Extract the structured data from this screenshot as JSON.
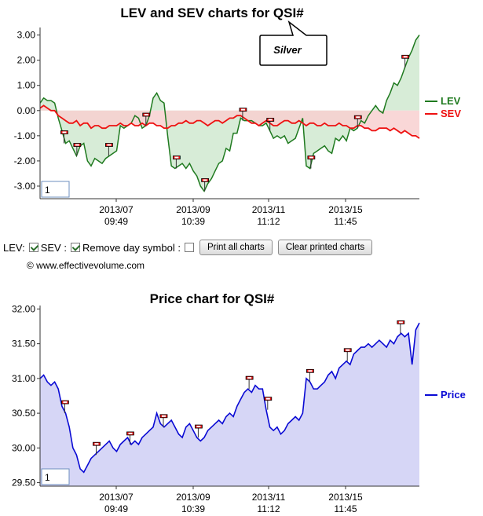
{
  "chart1": {
    "title": "LEV and SEV charts for QSI#",
    "callout": "Silver",
    "zoom_box": "1",
    "legend": {
      "lev": "LEV",
      "sev": "SEV"
    },
    "colors": {
      "lev": "#1f7a1f",
      "sev": "#ee1111",
      "lev_fill": "#d7ecd7",
      "sev_fill": "#f8d0d0",
      "overlap_fill": "#d6c4b0"
    }
  },
  "chart2": {
    "title": "Price chart for QSI#",
    "zoom_box": "1",
    "legend": {
      "price": "Price"
    },
    "colors": {
      "price": "#0a0ad4",
      "fill": "#d6d6f6"
    }
  },
  "controls": {
    "lev_label": "LEV:",
    "sev_label": "SEV :",
    "remove_label": "Remove day symbol :",
    "lev_checked": true,
    "sev_checked": true,
    "remove_checked": false,
    "print_all": "Print all charts",
    "clear_printed": "Clear printed charts"
  },
  "copyright": "© www.effectivevolume.com",
  "chart_data": [
    {
      "type": "area",
      "title": "LEV and SEV charts for QSI#",
      "ylim": [
        -3.5,
        3.3
      ],
      "yticks": [
        "3.00",
        "2.00",
        "1.00",
        "0.00",
        "-1.00",
        "-2.00",
        "-3.00"
      ],
      "yticks_values": [
        3,
        2,
        1,
        0,
        -1,
        -2,
        -3
      ],
      "xticks": [
        {
          "date": "2013/07",
          "time": "09:49"
        },
        {
          "date": "2013/09",
          "time": "10:39"
        },
        {
          "date": "2013/11",
          "time": "11:12"
        },
        {
          "date": "2013/15",
          "time": "11:45"
        }
      ],
      "grid": false,
      "legend_position": "right",
      "series": [
        {
          "name": "LEV",
          "values": [
            0.3,
            0.5,
            0.4,
            0.4,
            0.3,
            -0.3,
            -0.8,
            -1.3,
            -1.2,
            -1.5,
            -1.8,
            -1.4,
            -1.3,
            -2.0,
            -2.2,
            -1.9,
            -2.0,
            -2.1,
            -1.9,
            -1.8,
            -1.7,
            -1.6,
            -0.6,
            -0.7,
            -0.6,
            -0.5,
            -0.2,
            -0.3,
            -0.7,
            -0.6,
            -0.2,
            0.5,
            0.7,
            0.4,
            0.3,
            -1.0,
            -2.2,
            -2.3,
            -2.2,
            -2.1,
            -2.3,
            -2.1,
            -2.4,
            -2.6,
            -3.0,
            -3.2,
            -2.9,
            -2.7,
            -2.4,
            -2.1,
            -2.0,
            -1.5,
            -1.6,
            -0.9,
            -0.9,
            -0.3,
            -0.4,
            -0.4,
            -0.4,
            -0.5,
            -0.6,
            -0.6,
            -0.5,
            -0.8,
            -1.1,
            -1.0,
            -1.1,
            -1.0,
            -1.3,
            -1.2,
            -1.1,
            -0.7,
            -0.3,
            -2.2,
            -2.3,
            -1.7,
            -1.6,
            -1.5,
            -1.4,
            -1.6,
            -1.7,
            -1.1,
            -1.2,
            -1.0,
            -1.2,
            -0.7,
            -0.8,
            -0.7,
            -0.4,
            -0.5,
            -0.2,
            0.0,
            0.2,
            0.0,
            -0.1,
            0.4,
            0.7,
            1.1,
            1.0,
            1.3,
            1.7,
            2.1,
            2.4,
            2.8,
            3.0
          ]
        },
        {
          "name": "SEV",
          "values": [
            0.1,
            0.2,
            0.1,
            0.0,
            0.0,
            -0.2,
            -0.3,
            -0.4,
            -0.5,
            -0.5,
            -0.4,
            -0.6,
            -0.5,
            -0.5,
            -0.7,
            -0.6,
            -0.6,
            -0.7,
            -0.7,
            -0.6,
            -0.6,
            -0.6,
            -0.5,
            -0.6,
            -0.6,
            -0.5,
            -0.6,
            -0.6,
            -0.5,
            -0.6,
            -0.5,
            -0.5,
            -0.6,
            -0.6,
            -0.7,
            -0.7,
            -0.6,
            -0.6,
            -0.5,
            -0.5,
            -0.4,
            -0.5,
            -0.5,
            -0.4,
            -0.4,
            -0.5,
            -0.6,
            -0.5,
            -0.4,
            -0.4,
            -0.5,
            -0.4,
            -0.3,
            -0.3,
            -0.2,
            -0.2,
            -0.3,
            -0.4,
            -0.5,
            -0.5,
            -0.6,
            -0.5,
            -0.4,
            -0.5,
            -0.6,
            -0.6,
            -0.5,
            -0.4,
            -0.4,
            -0.5,
            -0.5,
            -0.4,
            -0.5,
            -0.6,
            -0.5,
            -0.5,
            -0.6,
            -0.6,
            -0.5,
            -0.6,
            -0.6,
            -0.6,
            -0.5,
            -0.6,
            -0.6,
            -0.7,
            -0.7,
            -0.6,
            -0.6,
            -0.7,
            -0.7,
            -0.8,
            -0.8,
            -0.7,
            -0.7,
            -0.7,
            -0.8,
            -0.7,
            -0.8,
            -0.9,
            -0.8,
            -0.9,
            -1.0,
            -1.0,
            -1.1
          ]
        }
      ],
      "day_markers": [
        0.063,
        0.097,
        0.181,
        0.279,
        0.359,
        0.434,
        0.534,
        0.606,
        0.714,
        0.837,
        0.962
      ]
    },
    {
      "type": "area",
      "title": "Price chart for QSI#",
      "ylim": [
        29.45,
        32.05
      ],
      "yticks": [
        "32.00",
        "31.50",
        "31.00",
        "30.50",
        "30.00",
        "29.50"
      ],
      "yticks_values": [
        32,
        31.5,
        31,
        30.5,
        30,
        29.5
      ],
      "xticks": [
        {
          "date": "2013/07",
          "time": "09:49"
        },
        {
          "date": "2013/09",
          "time": "10:39"
        },
        {
          "date": "2013/11",
          "time": "11:12"
        },
        {
          "date": "2013/15",
          "time": "11:45"
        }
      ],
      "grid": false,
      "legend_position": "right",
      "series": [
        {
          "name": "Price",
          "values": [
            31.0,
            31.05,
            30.95,
            30.9,
            30.95,
            30.85,
            30.6,
            30.5,
            30.3,
            30.0,
            29.9,
            29.7,
            29.65,
            29.75,
            29.85,
            29.9,
            29.95,
            30.0,
            30.05,
            30.1,
            30.0,
            29.95,
            30.05,
            30.1,
            30.15,
            30.05,
            30.1,
            30.05,
            30.15,
            30.2,
            30.25,
            30.3,
            30.5,
            30.35,
            30.3,
            30.35,
            30.4,
            30.3,
            30.2,
            30.15,
            30.3,
            30.35,
            30.25,
            30.15,
            30.1,
            30.15,
            30.25,
            30.3,
            30.35,
            30.4,
            30.35,
            30.45,
            30.5,
            30.45,
            30.6,
            30.7,
            30.8,
            30.85,
            30.8,
            30.9,
            30.85,
            30.85,
            30.55,
            30.3,
            30.25,
            30.3,
            30.2,
            30.25,
            30.35,
            30.4,
            30.45,
            30.4,
            30.5,
            31.0,
            30.95,
            30.85,
            30.85,
            30.9,
            30.95,
            31.05,
            31.1,
            31.0,
            31.15,
            31.2,
            31.25,
            31.2,
            31.35,
            31.4,
            31.45,
            31.45,
            31.5,
            31.45,
            31.5,
            31.55,
            31.5,
            31.45,
            31.55,
            31.5,
            31.6,
            31.65,
            31.6,
            31.65,
            31.2,
            31.7,
            31.8
          ]
        }
      ],
      "day_markers": [
        0.065,
        0.148,
        0.237,
        0.325,
        0.417,
        0.551,
        0.6,
        0.711,
        0.81,
        0.95
      ]
    }
  ]
}
